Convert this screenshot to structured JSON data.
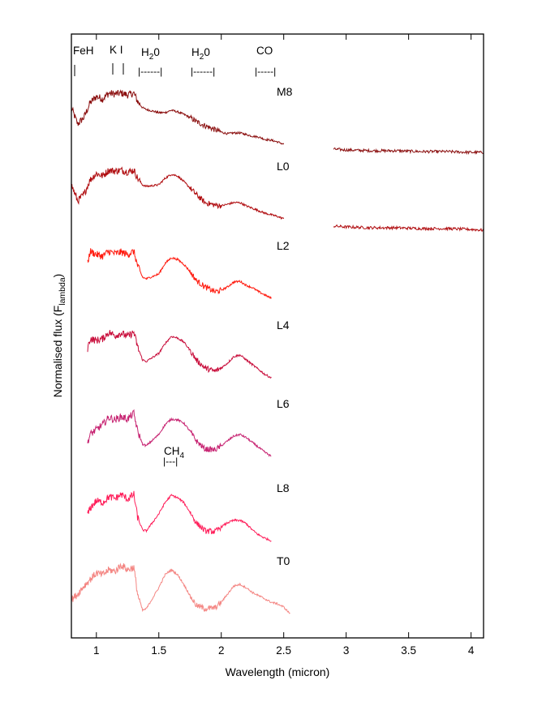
{
  "chart_data": {
    "type": "line",
    "xlabel": "Wavelength (micron)",
    "ylabel": "Normalised flux (F",
    "ylabel_sub": "lambda",
    "ylabel_close": ")",
    "xlim": [
      0.8,
      4.1
    ],
    "xticks": [
      1,
      1.5,
      2,
      2.5,
      3,
      3.5,
      4
    ],
    "xtick_labels": [
      "1",
      "1.5",
      "2",
      "2.5",
      "3",
      "3.5",
      "4"
    ],
    "grid": false,
    "annotations": {
      "feh": "FeH",
      "ki": "K I",
      "h2o_1": "H",
      "h2o_1_sub": "2",
      "h2o_1_tail": "0",
      "h2o_2": "H",
      "h2o_2_sub": "2",
      "h2o_2_tail": "0",
      "co": "CO",
      "ch4": "CH",
      "ch4_sub": "4"
    },
    "series": [
      {
        "name": "M8",
        "color": "#8b0f0f",
        "offset": 0.0,
        "x": [
          0.8,
          0.85,
          0.9,
          0.95,
          1.0,
          1.05,
          1.1,
          1.15,
          1.2,
          1.25,
          1.3,
          1.33,
          1.37,
          1.4,
          1.5,
          1.55,
          1.6,
          1.65,
          1.7,
          1.75,
          1.8,
          1.87,
          1.95,
          2.0,
          2.05,
          2.1,
          2.15,
          2.2,
          2.25,
          2.3,
          2.35,
          2.4,
          2.45,
          2.5
        ],
        "y": [
          0.82,
          0.62,
          0.7,
          0.88,
          0.96,
          0.93,
          1.0,
          0.99,
          1.0,
          0.98,
          1.0,
          0.9,
          0.82,
          0.8,
          0.76,
          0.76,
          0.79,
          0.77,
          0.74,
          0.7,
          0.65,
          0.6,
          0.55,
          0.52,
          0.5,
          0.51,
          0.51,
          0.49,
          0.47,
          0.46,
          0.43,
          0.42,
          0.4,
          0.37
        ],
        "x_ext": [
          2.9,
          3.0,
          3.2,
          3.4,
          3.6,
          3.8,
          4.0,
          4.1
        ],
        "y_ext": [
          0.31,
          0.3,
          0.29,
          0.29,
          0.28,
          0.28,
          0.27,
          0.27
        ]
      },
      {
        "name": "L0",
        "color": "#b00d10",
        "offset": -0.95,
        "x": [
          0.8,
          0.85,
          0.9,
          0.95,
          1.0,
          1.05,
          1.1,
          1.15,
          1.2,
          1.25,
          1.3,
          1.33,
          1.37,
          1.4,
          1.5,
          1.55,
          1.6,
          1.65,
          1.7,
          1.75,
          1.8,
          1.87,
          1.95,
          2.0,
          2.05,
          2.1,
          2.15,
          2.2,
          2.25,
          2.3,
          2.35,
          2.4,
          2.45,
          2.5
        ],
        "y": [
          0.82,
          0.62,
          0.7,
          0.88,
          0.96,
          0.93,
          1.0,
          0.99,
          1.0,
          0.98,
          1.0,
          0.9,
          0.82,
          0.8,
          0.82,
          0.9,
          0.95,
          0.93,
          0.86,
          0.78,
          0.7,
          0.6,
          0.57,
          0.56,
          0.58,
          0.6,
          0.6,
          0.56,
          0.53,
          0.5,
          0.47,
          0.45,
          0.43,
          0.4
        ],
        "x_ext": [
          2.9,
          3.0,
          3.2,
          3.4,
          3.6,
          3.8,
          4.0,
          4.1
        ],
        "y_ext": [
          0.31,
          0.3,
          0.29,
          0.29,
          0.28,
          0.28,
          0.27,
          0.26
        ]
      },
      {
        "name": "L2",
        "color": "#ff1a0e",
        "offset": -1.95,
        "x": [
          0.93,
          0.95,
          1.0,
          1.05,
          1.1,
          1.15,
          1.2,
          1.25,
          1.3,
          1.33,
          1.37,
          1.4,
          1.5,
          1.55,
          1.6,
          1.65,
          1.7,
          1.75,
          1.8,
          1.87,
          1.95,
          2.0,
          2.05,
          2.1,
          2.15,
          2.2,
          2.25,
          2.3,
          2.35,
          2.4
        ],
        "y": [
          0.85,
          1.0,
          0.96,
          0.94,
          1.0,
          0.97,
          0.99,
          0.96,
          1.0,
          0.82,
          0.68,
          0.66,
          0.72,
          0.85,
          0.92,
          0.9,
          0.84,
          0.75,
          0.64,
          0.56,
          0.5,
          0.52,
          0.56,
          0.62,
          0.63,
          0.58,
          0.55,
          0.5,
          0.46,
          0.42
        ]
      },
      {
        "name": "L4",
        "color": "#c80c3a",
        "offset": -2.95,
        "x": [
          0.93,
          0.95,
          1.0,
          1.05,
          1.1,
          1.15,
          1.2,
          1.25,
          1.3,
          1.33,
          1.37,
          1.4,
          1.5,
          1.55,
          1.6,
          1.65,
          1.7,
          1.75,
          1.8,
          1.87,
          1.95,
          2.0,
          2.05,
          2.1,
          2.15,
          2.2,
          2.25,
          2.3,
          2.35,
          2.4
        ],
        "y": [
          0.8,
          0.92,
          0.9,
          0.92,
          1.0,
          0.96,
          0.99,
          0.95,
          1.0,
          0.82,
          0.66,
          0.64,
          0.74,
          0.86,
          0.95,
          0.93,
          0.88,
          0.78,
          0.66,
          0.56,
          0.52,
          0.56,
          0.62,
          0.7,
          0.72,
          0.66,
          0.6,
          0.54,
          0.48,
          0.44
        ]
      },
      {
        "name": "L6",
        "color": "#c72472",
        "offset": -3.95,
        "x": [
          0.93,
          0.95,
          1.0,
          1.05,
          1.1,
          1.15,
          1.2,
          1.25,
          1.3,
          1.33,
          1.37,
          1.4,
          1.5,
          1.55,
          1.6,
          1.65,
          1.7,
          1.75,
          1.8,
          1.87,
          1.95,
          2.0,
          2.05,
          2.1,
          2.15,
          2.2,
          2.25,
          2.3,
          2.35,
          2.4
        ],
        "y": [
          0.64,
          0.74,
          0.8,
          0.86,
          0.95,
          0.92,
          0.96,
          0.93,
          1.0,
          0.78,
          0.62,
          0.6,
          0.74,
          0.86,
          0.93,
          0.92,
          0.88,
          0.78,
          0.66,
          0.56,
          0.55,
          0.6,
          0.66,
          0.72,
          0.74,
          0.7,
          0.64,
          0.58,
          0.52,
          0.47
        ]
      },
      {
        "name": "L8",
        "color": "#ff1e5a",
        "offset": -4.95,
        "x": [
          0.93,
          0.95,
          1.0,
          1.05,
          1.1,
          1.15,
          1.2,
          1.25,
          1.3,
          1.33,
          1.37,
          1.4,
          1.5,
          1.55,
          1.6,
          1.65,
          1.7,
          1.75,
          1.8,
          1.87,
          1.95,
          2.0,
          2.05,
          2.1,
          2.15,
          2.2,
          2.25,
          2.3,
          2.35,
          2.4
        ],
        "y": [
          0.75,
          0.83,
          0.92,
          0.9,
          0.97,
          0.95,
          1.0,
          0.94,
          1.0,
          0.72,
          0.56,
          0.55,
          0.76,
          0.9,
          0.99,
          0.96,
          0.9,
          0.78,
          0.65,
          0.55,
          0.54,
          0.6,
          0.65,
          0.68,
          0.68,
          0.64,
          0.56,
          0.5,
          0.46,
          0.43
        ]
      },
      {
        "name": "T0",
        "color": "#f48683",
        "offset": -5.8,
        "x": [
          0.8,
          0.85,
          0.9,
          0.95,
          1.0,
          1.05,
          1.1,
          1.15,
          1.2,
          1.25,
          1.3,
          1.33,
          1.37,
          1.4,
          1.5,
          1.55,
          1.6,
          1.65,
          1.7,
          1.75,
          1.8,
          1.87,
          1.95,
          2.0,
          2.05,
          2.1,
          2.15,
          2.2,
          2.25,
          2.3,
          2.35,
          2.4,
          2.45,
          2.5,
          2.55
        ],
        "y": [
          0.55,
          0.62,
          0.72,
          0.8,
          0.88,
          0.86,
          0.92,
          0.9,
          0.98,
          0.92,
          0.95,
          0.62,
          0.42,
          0.44,
          0.7,
          0.86,
          0.92,
          0.86,
          0.74,
          0.6,
          0.48,
          0.44,
          0.45,
          0.52,
          0.62,
          0.72,
          0.74,
          0.7,
          0.64,
          0.6,
          0.56,
          0.52,
          0.5,
          0.46,
          0.38
        ]
      }
    ]
  }
}
